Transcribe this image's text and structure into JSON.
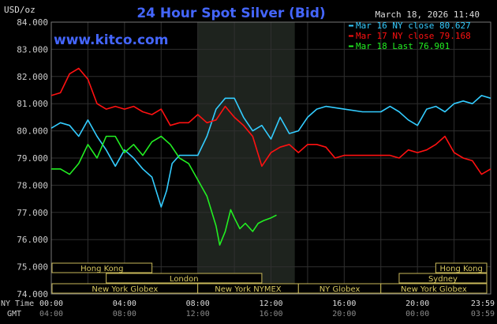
{
  "chart_data": {
    "type": "line",
    "title": "24 Hour Spot Silver (Bid)",
    "timestamp": "March 18, 2026 11:40",
    "watermark": "www.kitco.com",
    "ylabel": "USD/oz",
    "ylim": [
      74.0,
      84.0
    ],
    "yticks": [
      "84.000",
      "83.000",
      "82.000",
      "81.000",
      "80.000",
      "79.000",
      "78.000",
      "77.000",
      "76.000",
      "75.000",
      "74.000"
    ],
    "x_row1_label": "NY Time",
    "x_row2_label": "GMT",
    "xticks_ny": [
      "00:00",
      "04:00",
      "08:00",
      "12:00",
      "16:00",
      "20:00",
      "23:59"
    ],
    "xticks_gmt": [
      "04:00",
      "08:00",
      "12:00",
      "16:00",
      "20:00",
      "00:00",
      "03:59"
    ],
    "xlim_hours": [
      0,
      24
    ],
    "shaded_hours": [
      8.0,
      13.3
    ],
    "grid": true,
    "legend_placement": "top-right",
    "series": [
      {
        "name": "Mar 16 NY close 80.627",
        "color": "#33ccff",
        "x": [
          0,
          0.5,
          1,
          1.5,
          2,
          2.5,
          3,
          3.5,
          4,
          4.5,
          5,
          5.5,
          6,
          6.3,
          6.6,
          7,
          7.5,
          8,
          8.5,
          9,
          9.5,
          10,
          10.5,
          11,
          11.5,
          12,
          12.5,
          13,
          13.5,
          14,
          14.5,
          15,
          16,
          17,
          18,
          18.5,
          19,
          19.5,
          20,
          20.5,
          21,
          21.5,
          22,
          22.5,
          23,
          23.5,
          24
        ],
        "values": [
          80.1,
          80.3,
          80.2,
          79.8,
          80.4,
          79.8,
          79.3,
          78.7,
          79.3,
          79.0,
          78.6,
          78.3,
          77.2,
          77.8,
          78.8,
          79.1,
          79.1,
          79.1,
          79.8,
          80.8,
          81.2,
          81.2,
          80.5,
          80.0,
          80.2,
          79.7,
          80.5,
          79.9,
          80.0,
          80.5,
          80.8,
          80.9,
          80.8,
          80.7,
          80.7,
          80.9,
          80.7,
          80.4,
          80.2,
          80.8,
          80.9,
          80.7,
          81.0,
          81.1,
          81.0,
          81.3,
          81.2
        ]
      },
      {
        "name": "Mar 17 NY close 79.168",
        "color": "#ff1111",
        "x": [
          0,
          0.5,
          1,
          1.5,
          2,
          2.5,
          3,
          3.5,
          4,
          4.5,
          5,
          5.5,
          6,
          6.5,
          7,
          7.5,
          8,
          8.5,
          9,
          9.5,
          10,
          10.5,
          11,
          11.5,
          12,
          12.5,
          13,
          13.5,
          14,
          14.5,
          15,
          15.5,
          16,
          17,
          18,
          18.5,
          19,
          19.5,
          20,
          20.5,
          21,
          21.5,
          22,
          22.5,
          23,
          23.5,
          24
        ],
        "values": [
          81.3,
          81.4,
          82.1,
          82.3,
          81.9,
          81.0,
          80.8,
          80.9,
          80.8,
          80.9,
          80.7,
          80.6,
          80.8,
          80.2,
          80.3,
          80.3,
          80.6,
          80.3,
          80.4,
          80.9,
          80.5,
          80.2,
          79.8,
          78.7,
          79.2,
          79.4,
          79.5,
          79.2,
          79.5,
          79.5,
          79.4,
          79.0,
          79.1,
          79.1,
          79.1,
          79.1,
          79.0,
          79.3,
          79.2,
          79.3,
          79.5,
          79.8,
          79.2,
          79.0,
          78.9,
          78.4,
          78.6
        ]
      },
      {
        "name": "Mar 18 Last 76.901",
        "color": "#22ee22",
        "x": [
          0,
          0.5,
          1,
          1.5,
          2,
          2.5,
          3,
          3.5,
          4,
          4.5,
          5,
          5.5,
          6,
          6.5,
          7,
          7.5,
          8,
          8.5,
          9,
          9.2,
          9.5,
          9.8,
          10,
          10.3,
          10.6,
          11,
          11.3,
          11.6,
          12,
          12.3
        ],
        "values": [
          78.6,
          78.6,
          78.4,
          78.8,
          79.5,
          79.0,
          79.8,
          79.8,
          79.2,
          79.5,
          79.1,
          79.6,
          79.8,
          79.5,
          79.0,
          78.8,
          78.2,
          77.6,
          76.5,
          75.8,
          76.3,
          77.1,
          76.8,
          76.4,
          76.6,
          76.3,
          76.6,
          76.7,
          76.8,
          76.9
        ]
      }
    ]
  },
  "session_bars": [
    {
      "label": "Hong Kong",
      "start": 0.0,
      "end": 5.5
    },
    {
      "label": "London",
      "start": 3.0,
      "end": 11.5
    },
    {
      "label": "New York Globex",
      "start": -2.0,
      "end": 8.0
    },
    {
      "label": "New York NYMEX",
      "start": 8.0,
      "end": 13.5
    },
    {
      "label": "NY Globex",
      "start": 13.5,
      "end": 18.0
    },
    {
      "label": "Hong Kong",
      "start": 21.0,
      "end": 26.0
    },
    {
      "label": "Sydney",
      "start": 19.0,
      "end": 26.0
    },
    {
      "label": "New York Globex",
      "start": 18.0,
      "end": 26.0
    }
  ]
}
